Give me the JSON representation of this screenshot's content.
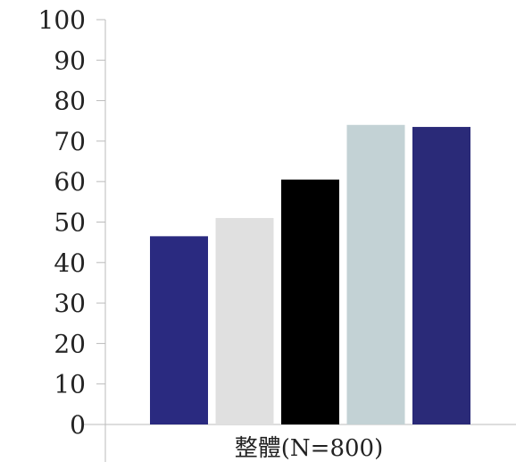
{
  "chart_data": {
    "type": "bar",
    "categories": [
      "整體(N=800)"
    ],
    "series": [
      {
        "values": [
          46.5
        ],
        "color": "#2a2a80"
      },
      {
        "values": [
          51
        ],
        "color": "#e0e0e0"
      },
      {
        "values": [
          60.5
        ],
        "color": "#000000"
      },
      {
        "values": [
          74
        ],
        "color": "#c3d2d5"
      },
      {
        "values": [
          73.5
        ],
        "color": "#2a2a78"
      }
    ],
    "ylim": [
      0,
      100
    ],
    "yticks": [
      "0",
      "10",
      "20",
      "30",
      "40",
      "50",
      "60",
      "70",
      "80",
      "90",
      "100"
    ],
    "grid": false,
    "legend": "none"
  }
}
